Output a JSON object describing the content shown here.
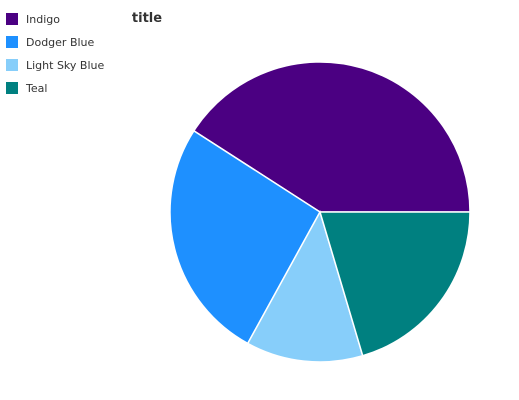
{
  "chart_data": {
    "type": "pie",
    "title": "title",
    "categories": [
      "Indigo",
      "Dodger Blue",
      "Light Sky Blue",
      "Teal"
    ],
    "values": [
      40.9,
      26.1,
      12.6,
      20.4
    ],
    "colors": [
      "#4b0082",
      "#1e90ff",
      "#87cefa",
      "#008080"
    ],
    "legend_position": "top-left",
    "start_angle_deg": 0,
    "direction": "counterclockwise"
  }
}
